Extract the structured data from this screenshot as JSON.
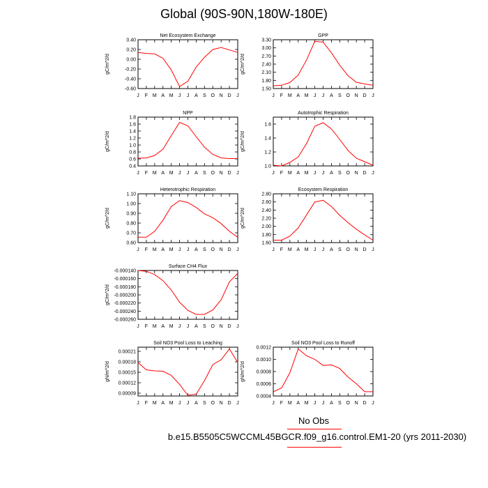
{
  "title": "Global (90S-90N,180W-180E)",
  "legend": {
    "obs_label": "No Obs",
    "case_label": "b.e15.B5505C5WCCML45BGCR.f09_g16.control.EM1-20 (yrs 2011-2030)",
    "line_color": "#ff0000"
  },
  "chart_data": [
    {
      "type": "line",
      "title": "Net Ecosystem Exchange",
      "ylabel": "gC/m^2/d",
      "categories": [
        "J",
        "F",
        "M",
        "A",
        "M",
        "J",
        "J",
        "A",
        "S",
        "O",
        "N",
        "D",
        "J"
      ],
      "yticks": [
        "0.40",
        "0.20",
        "0.00",
        "-0.20",
        "-0.40",
        "-0.60"
      ],
      "ylim": [
        -0.6,
        0.4
      ],
      "series": [
        {
          "values": [
            0.14,
            0.12,
            0.11,
            0.02,
            -0.22,
            -0.56,
            -0.45,
            -0.16,
            0.04,
            0.2,
            0.24,
            0.19,
            0.14
          ]
        }
      ]
    },
    {
      "type": "line",
      "title": "GPP",
      "ylabel": "gC/m^2/d",
      "categories": [
        "J",
        "F",
        "M",
        "A",
        "M",
        "J",
        "J",
        "A",
        "S",
        "O",
        "N",
        "D",
        "J"
      ],
      "yticks": [
        "3.30",
        "3.00",
        "2.70",
        "2.40",
        "2.10",
        "1.80",
        "1.50"
      ],
      "ylim": [
        1.5,
        3.3
      ],
      "series": [
        {
          "values": [
            1.6,
            1.62,
            1.72,
            2.0,
            2.55,
            3.24,
            3.21,
            2.82,
            2.36,
            1.97,
            1.73,
            1.67,
            1.62
          ]
        }
      ]
    },
    {
      "type": "line",
      "title": "NPP",
      "ylabel": "gC/m^2/d",
      "categories": [
        "J",
        "F",
        "M",
        "A",
        "M",
        "J",
        "J",
        "A",
        "S",
        "O",
        "N",
        "D",
        "J"
      ],
      "yticks": [
        "1.8",
        "1.6",
        "1.4",
        "1.2",
        "1.0",
        "0.8",
        "0.6",
        "0.4"
      ],
      "ylim": [
        0.4,
        1.8
      ],
      "series": [
        {
          "values": [
            0.62,
            0.63,
            0.7,
            0.88,
            1.27,
            1.65,
            1.55,
            1.24,
            0.94,
            0.73,
            0.63,
            0.61,
            0.61
          ]
        }
      ]
    },
    {
      "type": "line",
      "title": "Autotrophic Respiration",
      "ylabel": "gC/m^2/d",
      "categories": [
        "J",
        "F",
        "M",
        "A",
        "M",
        "J",
        "J",
        "A",
        "S",
        "O",
        "N",
        "D",
        "J"
      ],
      "yticks": [
        "1.6",
        "1.4",
        "1.2",
        "1.0"
      ],
      "ylim": [
        1.0,
        1.7
      ],
      "series": [
        {
          "values": [
            1.01,
            1.0,
            1.05,
            1.13,
            1.32,
            1.57,
            1.62,
            1.53,
            1.38,
            1.22,
            1.11,
            1.06,
            1.01
          ]
        }
      ]
    },
    {
      "type": "line",
      "title": "Heterotrophic Respiration",
      "ylabel": "gC/m^2/d",
      "categories": [
        "J",
        "F",
        "M",
        "A",
        "M",
        "J",
        "J",
        "A",
        "S",
        "O",
        "N",
        "D",
        "J"
      ],
      "yticks": [
        "1.10",
        "1.00",
        "0.90",
        "0.80",
        "0.70",
        "0.60"
      ],
      "ylim": [
        0.6,
        1.1
      ],
      "series": [
        {
          "values": [
            0.655,
            0.655,
            0.715,
            0.83,
            0.97,
            1.03,
            1.01,
            0.96,
            0.895,
            0.855,
            0.795,
            0.715,
            0.655
          ]
        }
      ]
    },
    {
      "type": "line",
      "title": "Ecosystem Respiration",
      "ylabel": "gC/m^2/d",
      "categories": [
        "J",
        "F",
        "M",
        "A",
        "M",
        "J",
        "J",
        "A",
        "S",
        "O",
        "N",
        "D",
        "J"
      ],
      "yticks": [
        "2.80",
        "2.60",
        "2.40",
        "2.20",
        "2.00",
        "1.80",
        "1.60"
      ],
      "ylim": [
        1.6,
        2.8
      ],
      "series": [
        {
          "values": [
            1.66,
            1.66,
            1.76,
            1.96,
            2.28,
            2.6,
            2.64,
            2.49,
            2.27,
            2.09,
            1.93,
            1.79,
            1.66
          ]
        }
      ]
    },
    {
      "type": "line",
      "title": "Surface CH4 Flux",
      "ylabel": "gC/m^2/d",
      "categories": [
        "J",
        "F",
        "M",
        "A",
        "M",
        "J",
        "J",
        "A",
        "S",
        "O",
        "N",
        "D",
        "J"
      ],
      "yticks": [
        "-0.000140",
        "-0.000160",
        "-0.000180",
        "-0.000200",
        "-0.000220",
        "-0.000240",
        "-0.000260"
      ],
      "ylim": [
        -0.00026,
        -0.00014
      ],
      "series": [
        {
          "values": [
            -0.00014,
            -0.000142,
            -0.00015,
            -0.000165,
            -0.000188,
            -0.000218,
            -0.000238,
            -0.000248,
            -0.000248,
            -0.000237,
            -0.000212,
            -0.000168,
            -0.000147
          ]
        }
      ]
    },
    {
      "type": "line",
      "title": "Soil NO3 Pool Loss to Leaching",
      "ylabel": "gN/m^2/d",
      "categories": [
        "J",
        "F",
        "M",
        "A",
        "M",
        "J",
        "J",
        "A",
        "S",
        "O",
        "N",
        "D",
        "J"
      ],
      "yticks": [
        "0.00021",
        "0.00018",
        "0.00015",
        "0.00012",
        "0.00009"
      ],
      "ylim": [
        8.2e-05,
        0.000222
      ],
      "series": [
        {
          "values": [
            0.000178,
            0.000157,
            0.000154,
            0.000153,
            0.000141,
            0.000115,
            8.4e-05,
            8.7e-05,
            0.000126,
            0.000172,
            0.000186,
            0.000217,
            0.000178
          ]
        }
      ]
    },
    {
      "type": "line",
      "title": "Soil NO3 Pool Loss to Runoff",
      "ylabel": "gN/m^2/d",
      "categories": [
        "J",
        "F",
        "M",
        "A",
        "M",
        "J",
        "J",
        "A",
        "S",
        "O",
        "N",
        "D",
        "J"
      ],
      "yticks": [
        "0.0012",
        "0.0010",
        "0.0008",
        "0.0006",
        "0.0004"
      ],
      "ylim": [
        0.0004,
        0.0012
      ],
      "series": [
        {
          "values": [
            0.00047,
            0.00053,
            0.00078,
            0.00117,
            0.00106,
            0.001,
            0.0009,
            0.00091,
            0.00085,
            0.00071,
            0.0006,
            0.00047,
            0.00047
          ]
        }
      ]
    }
  ]
}
